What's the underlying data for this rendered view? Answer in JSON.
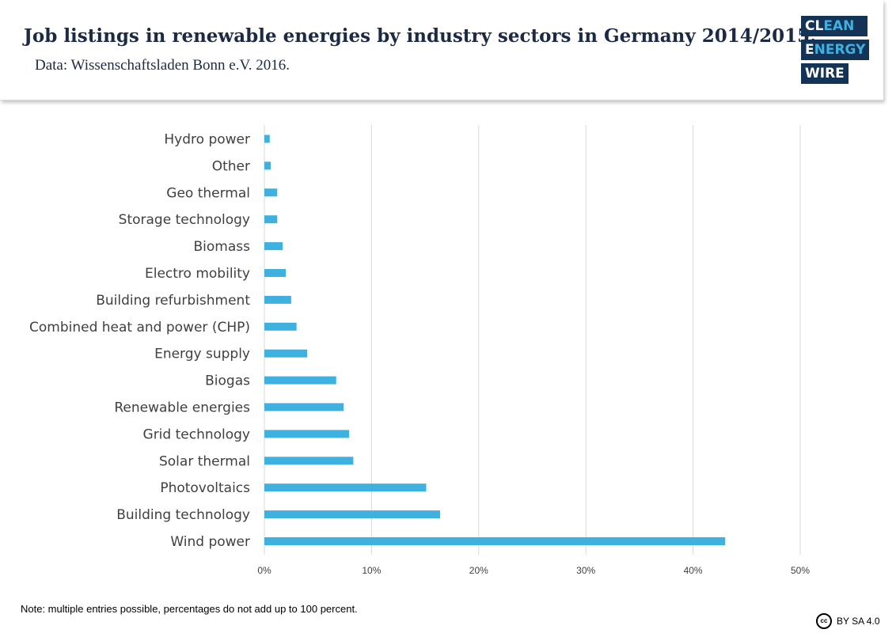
{
  "header": {
    "title": "Job listings in renewable energies by industry sectors in Germany 2014/2015.",
    "subtitle": "Data: Wissenschaftsladen Bonn e.V. 2016."
  },
  "logo": {
    "line1_a": "CL",
    "line1_b": "EAN",
    "line2_a": "E",
    "line2_b": "NERGY",
    "line3": "WIRE"
  },
  "footer": {
    "note": "Note: multiple entries possible, percentages do not add up to 100 percent.",
    "cc_icon_text": "cc",
    "license": "BY SA 4.0"
  },
  "colors": {
    "bar": "#3fb1e1",
    "text": "#404040",
    "grid": "#d9d9d9",
    "navy": "#133457"
  },
  "chart_data": {
    "type": "bar",
    "orientation": "horizontal",
    "title": "Job listings in renewable energies by industry sectors in Germany 2014/2015.",
    "categories": [
      "Hydro power",
      "Other",
      "Geo thermal",
      "Storage technology",
      "Biomass",
      "Electro mobility",
      "Building refurbishment",
      "Combined heat and power (CHP)",
      "Energy supply",
      "Biogas",
      "Renewable energies",
      "Grid technology",
      "Solar thermal",
      "Photovoltaics",
      "Building technology",
      "Wind power"
    ],
    "values": [
      0.5,
      0.6,
      1.2,
      1.2,
      1.7,
      2.0,
      2.5,
      3.0,
      4.0,
      6.7,
      7.4,
      7.9,
      8.3,
      15.1,
      16.4,
      43.0
    ],
    "unit": "%",
    "xlim": [
      0,
      50
    ],
    "xticks": [
      0,
      10,
      20,
      30,
      40,
      50
    ],
    "xtick_labels": [
      "0%",
      "10%",
      "20%",
      "30%",
      "40%",
      "50%"
    ],
    "grid": true,
    "xlabel": "",
    "ylabel": ""
  }
}
